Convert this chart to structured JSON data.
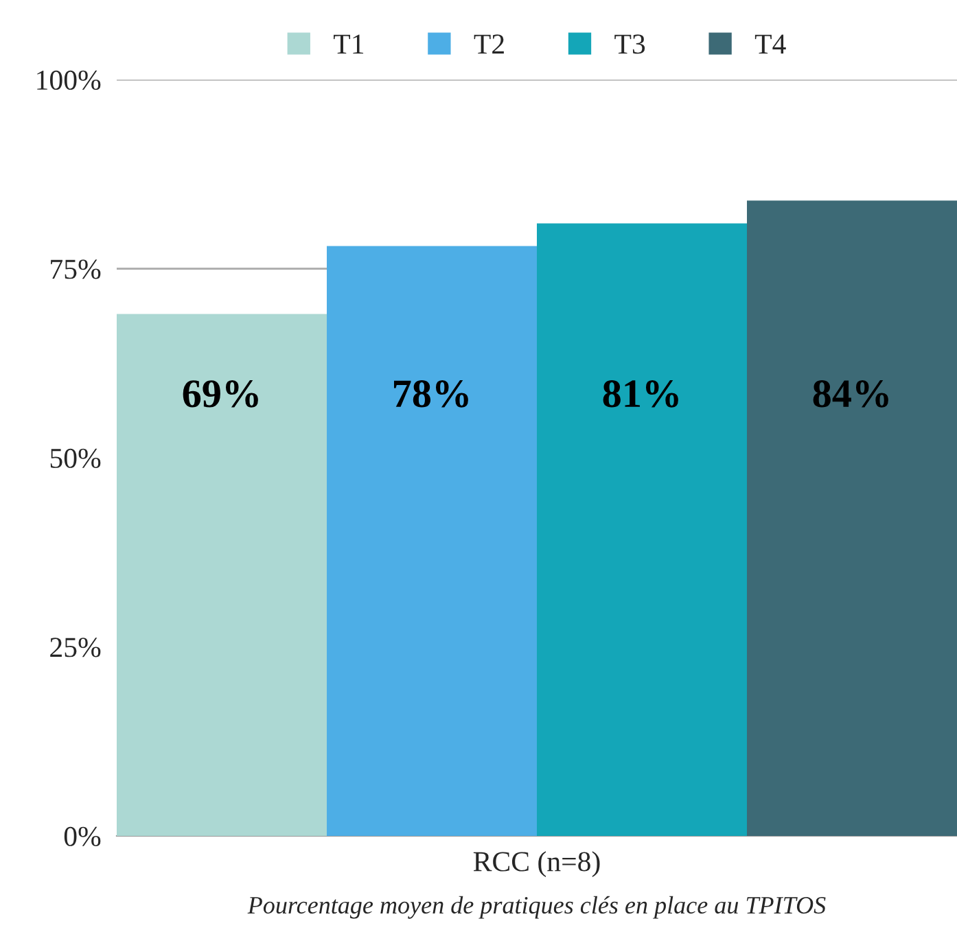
{
  "chart_data": {
    "type": "bar",
    "categories": [
      "RCC (n=8)"
    ],
    "series": [
      {
        "name": "T1",
        "color": "#acd8d3",
        "values": [
          69
        ],
        "value_labels": [
          "69%"
        ]
      },
      {
        "name": "T2",
        "color": "#4daee6",
        "values": [
          78
        ],
        "value_labels": [
          "78%"
        ]
      },
      {
        "name": "T3",
        "color": "#14a6b8",
        "values": [
          81
        ],
        "value_labels": [
          "81%"
        ]
      },
      {
        "name": "T4",
        "color": "#3d6a76",
        "values": [
          84
        ],
        "value_labels": [
          "84%"
        ]
      }
    ],
    "xlabel": "Pourcentage moyen de pratiques clés en place au TPITOS",
    "ylim": [
      0,
      100
    ],
    "yticks": [
      {
        "value": 0,
        "label": "0%"
      },
      {
        "value": 25,
        "label": "25%"
      },
      {
        "value": 50,
        "label": "50%"
      },
      {
        "value": 75,
        "label": "75%"
      },
      {
        "value": 100,
        "label": "100%"
      }
    ],
    "grid": "y",
    "legend": "top"
  }
}
